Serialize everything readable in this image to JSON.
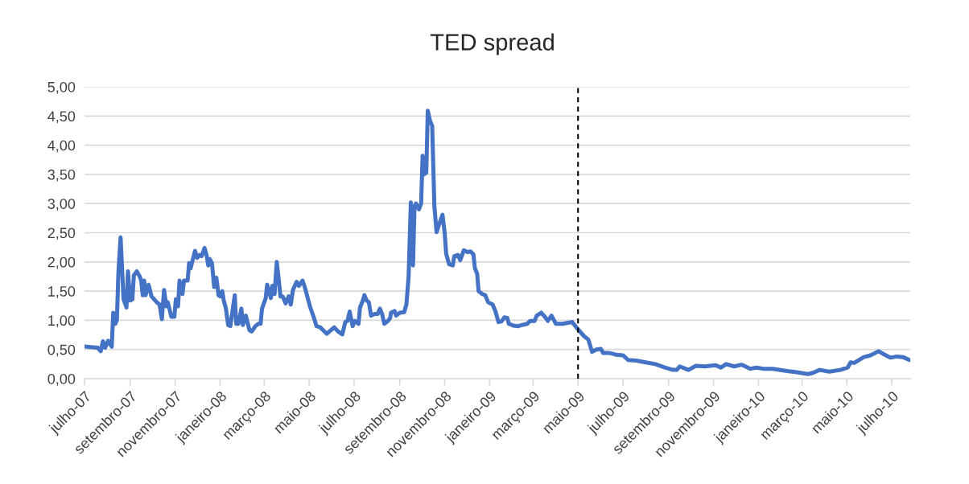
{
  "chart_data": {
    "type": "line",
    "title": "TED spread",
    "x": [
      "2007-07-01",
      "2007-07-19",
      "2007-07-23",
      "2007-07-26",
      "2007-07-29",
      "2007-08-02",
      "2007-08-07",
      "2007-08-09",
      "2007-08-12",
      "2007-08-14",
      "2007-08-16",
      "2007-08-19",
      "2007-08-21",
      "2007-08-23",
      "2007-08-27",
      "2007-08-29",
      "2007-09-01",
      "2007-09-04",
      "2007-09-06",
      "2007-09-10",
      "2007-09-14",
      "2007-09-16",
      "2007-09-18",
      "2007-09-20",
      "2007-09-22",
      "2007-09-26",
      "2007-09-30",
      "2007-10-07",
      "2007-10-11",
      "2007-10-14",
      "2007-10-17",
      "2007-10-20",
      "2007-10-22",
      "2007-10-27",
      "2007-10-31",
      "2007-11-02",
      "2007-11-05",
      "2007-11-07",
      "2007-11-11",
      "2007-11-13",
      "2007-11-18",
      "2007-11-20",
      "2007-11-22",
      "2007-11-28",
      "2007-12-01",
      "2007-12-04",
      "2007-12-07",
      "2007-12-11",
      "2007-12-14",
      "2007-12-16",
      "2007-12-18",
      "2007-12-21",
      "2007-12-24",
      "2007-12-27",
      "2007-12-30",
      "2008-01-01",
      "2008-01-04",
      "2008-01-06",
      "2008-01-09",
      "2008-01-12",
      "2008-01-15",
      "2008-01-21",
      "2008-01-23",
      "2008-01-26",
      "2008-01-30",
      "2008-02-01",
      "2008-02-05",
      "2008-02-10",
      "2008-02-13",
      "2008-02-18",
      "2008-02-22",
      "2008-02-25",
      "2008-02-27",
      "2008-03-03",
      "2008-03-05",
      "2008-03-10",
      "2008-03-12",
      "2008-03-15",
      "2008-03-18",
      "2008-03-21",
      "2008-03-23",
      "2008-03-26",
      "2008-03-30",
      "2008-04-03",
      "2008-04-06",
      "2008-04-09",
      "2008-04-14",
      "2008-04-17",
      "2008-04-22",
      "2008-04-25",
      "2008-04-28",
      "2008-05-02",
      "2008-05-07",
      "2008-05-11",
      "2008-05-16",
      "2008-05-20",
      "2008-05-25",
      "2008-06-04",
      "2008-06-09",
      "2008-06-15",
      "2008-06-19",
      "2008-06-22",
      "2008-06-25",
      "2008-06-29",
      "2008-07-02",
      "2008-07-07",
      "2008-07-09",
      "2008-07-12",
      "2008-07-15",
      "2008-07-18",
      "2008-07-21",
      "2008-07-24",
      "2008-07-29",
      "2008-08-02",
      "2008-08-05",
      "2008-08-08",
      "2008-08-11",
      "2008-08-16",
      "2008-08-19",
      "2008-08-20",
      "2008-08-25",
      "2008-08-27",
      "2008-09-01",
      "2008-09-07",
      "2008-09-10",
      "2008-09-13",
      "2008-09-16",
      "2008-09-19",
      "2008-09-21",
      "2008-09-23",
      "2008-09-27",
      "2008-09-30",
      "2008-10-02",
      "2008-10-04",
      "2008-10-07",
      "2008-10-09",
      "2008-10-12",
      "2008-10-15",
      "2008-10-18",
      "2008-10-21",
      "2008-10-24",
      "2008-10-29",
      "2008-11-01",
      "2008-11-03",
      "2008-11-07",
      "2008-11-12",
      "2008-11-14",
      "2008-11-19",
      "2008-11-22",
      "2008-11-27",
      "2008-12-02",
      "2008-12-06",
      "2008-12-10",
      "2008-12-12",
      "2008-12-15",
      "2008-12-17",
      "2008-12-22",
      "2008-12-26",
      "2008-12-30",
      "2009-01-05",
      "2009-01-09",
      "2009-01-13",
      "2009-01-17",
      "2009-01-21",
      "2009-01-25",
      "2009-01-27",
      "2009-02-02",
      "2009-02-09",
      "2009-02-14",
      "2009-02-21",
      "2009-02-25",
      "2009-03-03",
      "2009-03-06",
      "2009-03-12",
      "2009-03-17",
      "2009-03-21",
      "2009-03-26",
      "2009-04-01",
      "2009-04-10",
      "2009-04-23",
      "2009-05-02",
      "2009-05-09",
      "2009-05-15",
      "2009-05-20",
      "2009-05-26",
      "2009-06-01",
      "2009-06-04",
      "2009-06-13",
      "2009-06-22",
      "2009-07-01",
      "2009-07-08",
      "2009-07-19",
      "2009-08-01",
      "2009-08-14",
      "2009-08-27",
      "2009-09-07",
      "2009-09-12",
      "2009-09-16",
      "2009-09-28",
      "2009-10-08",
      "2009-10-20",
      "2009-11-04",
      "2009-11-11",
      "2009-11-18",
      "2009-11-29",
      "2009-12-09",
      "2009-12-21",
      "2009-12-29",
      "2010-01-07",
      "2010-01-20",
      "2010-02-09",
      "2010-02-22",
      "2010-03-09",
      "2010-03-16",
      "2010-03-25",
      "2010-04-07",
      "2010-04-22",
      "2010-05-02",
      "2010-05-06",
      "2010-05-11",
      "2010-05-24",
      "2010-06-02",
      "2010-06-13",
      "2010-06-20",
      "2010-06-29",
      "2010-07-08",
      "2010-07-16",
      "2010-07-25"
    ],
    "series": [
      {
        "color": "#4472c4",
        "values": [
          0.55,
          0.53,
          0.47,
          0.64,
          0.53,
          0.65,
          0.55,
          1.13,
          0.94,
          1.01,
          1.82,
          2.42,
          1.89,
          1.36,
          1.22,
          1.84,
          1.34,
          1.36,
          1.77,
          1.84,
          1.75,
          1.68,
          1.43,
          1.68,
          1.43,
          1.61,
          1.41,
          1.31,
          1.27,
          1.02,
          1.52,
          1.24,
          1.31,
          1.06,
          1.06,
          1.36,
          1.24,
          1.68,
          1.45,
          1.68,
          1.68,
          1.98,
          1.89,
          2.19,
          2.07,
          2.12,
          2.1,
          2.24,
          2.1,
          1.94,
          2.05,
          1.98,
          1.57,
          1.73,
          1.43,
          1.41,
          1.5,
          1.34,
          1.2,
          0.92,
          0.9,
          1.43,
          0.94,
          0.94,
          1.2,
          0.92,
          1.08,
          0.83,
          0.81,
          0.9,
          0.94,
          0.94,
          1.2,
          1.38,
          1.61,
          1.38,
          1.59,
          1.45,
          2.0,
          1.66,
          1.41,
          1.41,
          1.29,
          1.41,
          1.27,
          1.52,
          1.66,
          1.59,
          1.68,
          1.57,
          1.43,
          1.24,
          1.06,
          0.9,
          0.88,
          0.83,
          0.77,
          0.88,
          0.81,
          0.76,
          0.97,
          0.99,
          1.15,
          0.9,
          0.99,
          0.94,
          1.22,
          1.31,
          1.43,
          1.34,
          1.31,
          1.08,
          1.11,
          1.11,
          1.2,
          1.11,
          0.94,
          0.99,
          1.04,
          1.13,
          1.16,
          1.08,
          1.13,
          1.14,
          1.27,
          1.75,
          3.02,
          1.94,
          2.95,
          3.0,
          2.9,
          3.0,
          3.82,
          3.5,
          3.53,
          4.59,
          4.42,
          4.33,
          2.95,
          2.51,
          2.63,
          2.81,
          2.49,
          2.14,
          1.96,
          1.94,
          2.1,
          2.12,
          2.03,
          2.2,
          2.17,
          2.18,
          2.13,
          1.89,
          1.8,
          1.5,
          1.45,
          1.43,
          1.31,
          1.27,
          1.15,
          0.97,
          0.98,
          1.05,
          1.04,
          0.94,
          0.91,
          0.9,
          0.92,
          0.94,
          0.99,
          0.99,
          1.08,
          1.13,
          1.06,
          0.99,
          1.08,
          0.94,
          0.94,
          0.97,
          0.83,
          0.73,
          0.67,
          0.46,
          0.5,
          0.51,
          0.44,
          0.44,
          0.41,
          0.4,
          0.32,
          0.31,
          0.28,
          0.25,
          0.19,
          0.15,
          0.15,
          0.21,
          0.15,
          0.22,
          0.21,
          0.23,
          0.19,
          0.25,
          0.21,
          0.24,
          0.17,
          0.19,
          0.17,
          0.17,
          0.13,
          0.11,
          0.08,
          0.1,
          0.15,
          0.12,
          0.15,
          0.19,
          0.28,
          0.27,
          0.37,
          0.4,
          0.47,
          0.42,
          0.36,
          0.38,
          0.37,
          0.32
        ]
      }
    ],
    "xlim": [
      "2007-07-01",
      "2010-07-26"
    ],
    "xticks": [
      {
        "value": "2007-07-01",
        "label": "julho-07"
      },
      {
        "value": "2007-09-01",
        "label": "setembro-07"
      },
      {
        "value": "2007-11-01",
        "label": "novembro-07"
      },
      {
        "value": "2008-01-01",
        "label": "janeiro-08"
      },
      {
        "value": "2008-03-01",
        "label": "março-08"
      },
      {
        "value": "2008-05-01",
        "label": "maio-08"
      },
      {
        "value": "2008-07-01",
        "label": "julho-08"
      },
      {
        "value": "2008-09-01",
        "label": "setembro-08"
      },
      {
        "value": "2008-11-01",
        "label": "novembro-08"
      },
      {
        "value": "2009-01-01",
        "label": "janeiro-09"
      },
      {
        "value": "2009-03-01",
        "label": "março-09"
      },
      {
        "value": "2009-05-01",
        "label": "maio-09"
      },
      {
        "value": "2009-07-01",
        "label": "julho-09"
      },
      {
        "value": "2009-09-01",
        "label": "setembro-09"
      },
      {
        "value": "2009-11-01",
        "label": "novembro-09"
      },
      {
        "value": "2010-01-01",
        "label": "janeiro-10"
      },
      {
        "value": "2010-03-01",
        "label": "março-10"
      },
      {
        "value": "2010-05-01",
        "label": "maio-10"
      },
      {
        "value": "2010-07-01",
        "label": "julho-10"
      }
    ],
    "ylim": [
      0,
      5
    ],
    "yticks": [
      {
        "value": 0,
        "label": "0,00"
      },
      {
        "value": 0.5,
        "label": "0,50"
      },
      {
        "value": 1,
        "label": "1,00"
      },
      {
        "value": 1.5,
        "label": "1,50"
      },
      {
        "value": 2,
        "label": "2,00"
      },
      {
        "value": 2.5,
        "label": "2,50"
      },
      {
        "value": 3,
        "label": "3,00"
      },
      {
        "value": 3.5,
        "label": "3,50"
      },
      {
        "value": 4,
        "label": "4,00"
      },
      {
        "value": 4.5,
        "label": "4,50"
      },
      {
        "value": 5,
        "label": "5,00"
      }
    ],
    "grid": "y",
    "ref_lines": [
      {
        "axis": "x",
        "value": "2009-05-01",
        "color": "#000000",
        "line_style": "dashed"
      }
    ]
  }
}
